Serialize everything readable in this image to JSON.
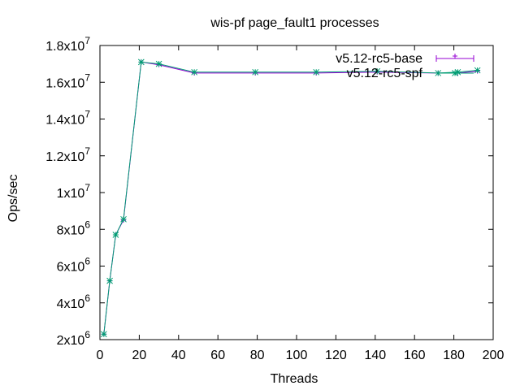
{
  "chart_data": {
    "type": "line",
    "title": "wis-pf page_fault1 processes",
    "xlabel": "Threads",
    "ylabel": "Ops/sec",
    "xlim": [
      0,
      200
    ],
    "ylim": [
      2000000,
      18000000
    ],
    "x_ticks": [
      0,
      20,
      40,
      60,
      80,
      100,
      120,
      140,
      160,
      180,
      200
    ],
    "y_ticks": [
      {
        "value": 2000000,
        "mant": "2x10",
        "exp": "6"
      },
      {
        "value": 4000000,
        "mant": "4x10",
        "exp": "6"
      },
      {
        "value": 6000000,
        "mant": "6x10",
        "exp": "6"
      },
      {
        "value": 8000000,
        "mant": "8x10",
        "exp": "6"
      },
      {
        "value": 10000000,
        "mant": "1x10",
        "exp": "7"
      },
      {
        "value": 12000000,
        "mant": "1.2x10",
        "exp": "7"
      },
      {
        "value": 14000000,
        "mant": "1.4x10",
        "exp": "7"
      },
      {
        "value": 16000000,
        "mant": "1.6x10",
        "exp": "7"
      },
      {
        "value": 18000000,
        "mant": "1.8x10",
        "exp": "7"
      }
    ],
    "grid": false,
    "legend_position": "top-right",
    "series": [
      {
        "name": "v5.12-rc5-base",
        "color": "#9400d3",
        "x": [
          2,
          5,
          8,
          12,
          21,
          30,
          48,
          79,
          110,
          141,
          172,
          182,
          192
        ],
        "y": [
          2300000,
          5200000,
          7700000,
          8500000,
          17100000,
          16950000,
          16500000,
          16500000,
          16500000,
          16550000,
          16500000,
          16500000,
          16600000
        ]
      },
      {
        "name": "v5.12-rc5-spf",
        "color": "#009e73",
        "x": [
          2,
          5,
          8,
          12,
          21,
          30,
          48,
          79,
          110,
          141,
          172,
          182,
          192
        ],
        "y": [
          2300000,
          5200000,
          7700000,
          8550000,
          17100000,
          17000000,
          16550000,
          16550000,
          16550000,
          16600000,
          16500000,
          16550000,
          16650000
        ]
      }
    ]
  }
}
